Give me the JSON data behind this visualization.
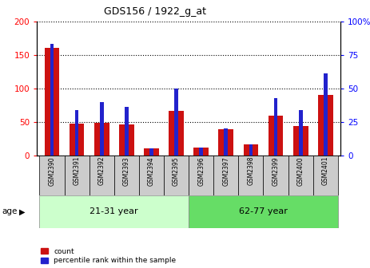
{
  "title": "GDS156 / 1922_g_at",
  "samples": [
    "GSM2390",
    "GSM2391",
    "GSM2392",
    "GSM2393",
    "GSM2394",
    "GSM2395",
    "GSM2396",
    "GSM2397",
    "GSM2398",
    "GSM2399",
    "GSM2400",
    "GSM2401"
  ],
  "count_values": [
    160,
    47,
    49,
    46,
    10,
    66,
    12,
    39,
    16,
    59,
    44,
    90
  ],
  "percentile_values": [
    83,
    34,
    40,
    36,
    5,
    50,
    6,
    20,
    8,
    43,
    34,
    61
  ],
  "group1_label": "21-31 year",
  "group2_label": "62-77 year",
  "group1_count": 6,
  "group2_count": 6,
  "ylim_left": [
    0,
    200
  ],
  "ylim_right": [
    0,
    100
  ],
  "yticks_left": [
    0,
    50,
    100,
    150,
    200
  ],
  "yticks_right": [
    0,
    25,
    50,
    75,
    100
  ],
  "bar_color_red": "#cc1111",
  "bar_color_blue": "#2222cc",
  "group_bg_color1": "#ccffcc",
  "group_bg_color2": "#66dd66",
  "sample_bg_color": "#cccccc",
  "age_label": "age",
  "legend_count": "count",
  "legend_percentile": "percentile rank within the sample",
  "red_bar_width": 0.6,
  "blue_bar_width": 0.15,
  "grid_color": "black",
  "grid_linestyle": "dotted"
}
